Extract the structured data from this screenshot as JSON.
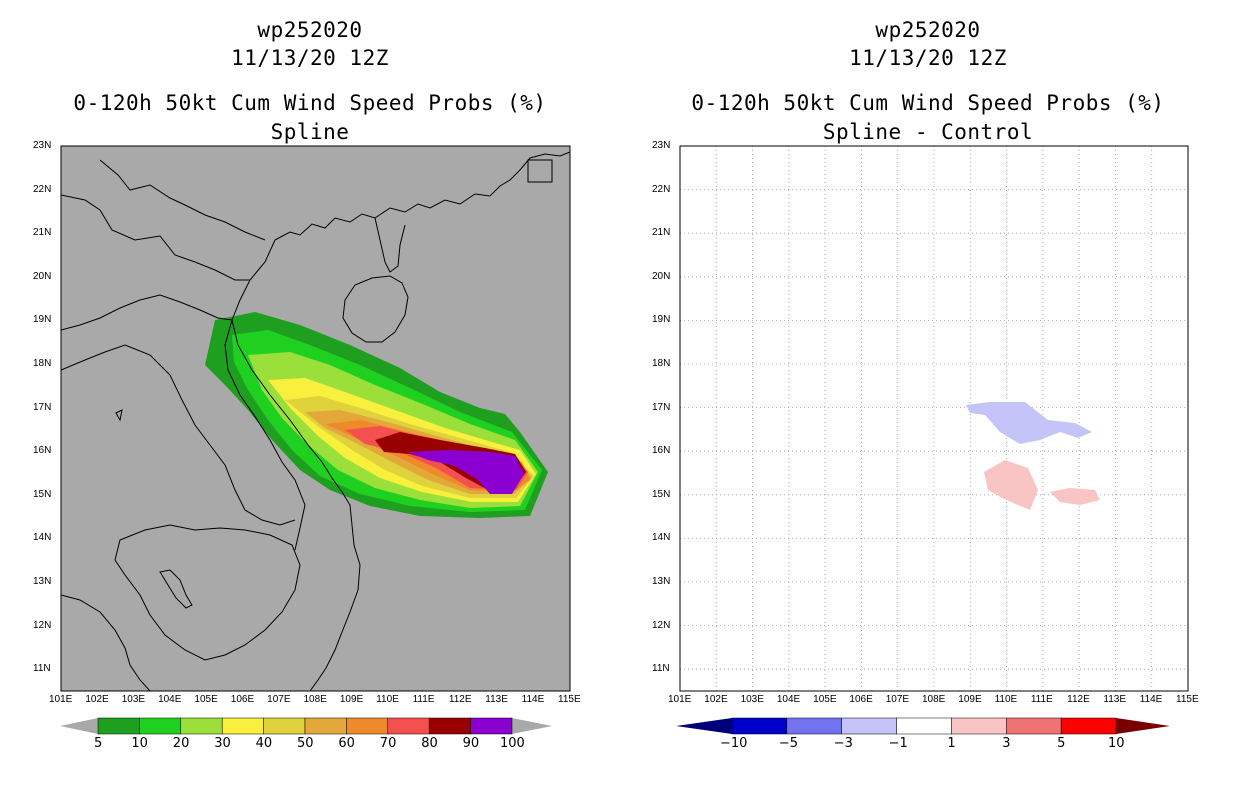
{
  "left": {
    "title_line1": "wp252020",
    "title_line2": "11/13/20 12Z",
    "title_line3": "0-120h 50kt Cum Wind Speed Probs (%)",
    "subtitle": "Spline",
    "background_color": "#a9a9a9",
    "colorbar_labels": [
      "5",
      "10",
      "20",
      "30",
      "40",
      "50",
      "60",
      "70",
      "80",
      "90",
      "100"
    ],
    "colorbar_colors": [
      "#1f9f1f",
      "#20d020",
      "#9bdf3b",
      "#f8f03c",
      "#e0d23c",
      "#e3a73a",
      "#ef8a2c",
      "#f45050",
      "#990000",
      "#8b00d0"
    ]
  },
  "right": {
    "title_line1": "wp252020",
    "title_line2": "11/13/20 12Z",
    "title_line3": "0-120h 50kt Cum Wind Speed Probs (%)",
    "subtitle": "Spline - Control",
    "background_color": "#ffffff",
    "colorbar_labels": [
      "-10",
      "-5",
      "-3",
      "-1",
      "1",
      "3",
      "5",
      "10"
    ],
    "colorbar_colors": [
      "#0000cc",
      "#7373f0",
      "#c4c4f8",
      "#ffffff",
      "#f8c4c4",
      "#f07373",
      "#ff0000"
    ],
    "colorbar_end_left": "#00007a",
    "colorbar_end_right": "#7a0000"
  },
  "axes": {
    "lon_ticks": [
      "101E",
      "102E",
      "103E",
      "104E",
      "105E",
      "106E",
      "107E",
      "108E",
      "109E",
      "110E",
      "111E",
      "112E",
      "113E",
      "114E",
      "115E"
    ],
    "lat_ticks": [
      "23N",
      "22N",
      "21N",
      "20N",
      "19N",
      "18N",
      "17N",
      "16N",
      "15N",
      "14N",
      "13N",
      "12N",
      "11N"
    ]
  },
  "map_extent": {
    "lon": [
      101,
      115
    ],
    "lat": [
      10.6,
      23
    ]
  }
}
